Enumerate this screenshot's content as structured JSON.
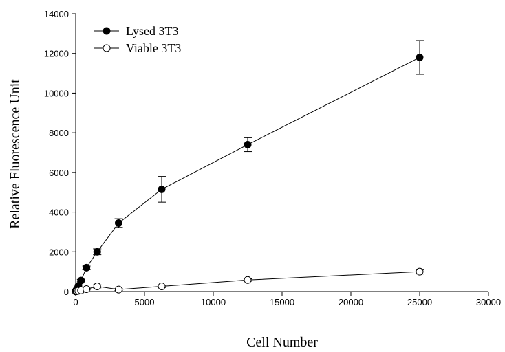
{
  "chart_data": {
    "type": "scatter",
    "title": "",
    "xlabel": "Cell Number",
    "ylabel": "Relative Fluorescence Unit",
    "xlim": [
      0,
      30000
    ],
    "ylim": [
      0,
      14000
    ],
    "xticks": [
      0,
      5000,
      10000,
      15000,
      20000,
      25000,
      30000
    ],
    "yticks": [
      0,
      2000,
      4000,
      6000,
      8000,
      10000,
      12000,
      14000
    ],
    "grid": false,
    "legend_position": "top-left",
    "series": [
      {
        "name": "Lysed 3T3",
        "marker": "filled-circle",
        "color": "#000000",
        "x": [
          0,
          49,
          98,
          195,
          390,
          781,
          1562,
          3125,
          6250,
          12500,
          25000
        ],
        "y": [
          20,
          60,
          130,
          280,
          550,
          1200,
          2000,
          3450,
          5150,
          7400,
          11800
        ],
        "yerr": [
          10,
          20,
          30,
          50,
          60,
          80,
          150,
          220,
          650,
          350,
          850
        ]
      },
      {
        "name": "Viable 3T3",
        "marker": "open-circle",
        "color": "#000000",
        "x": [
          0,
          49,
          98,
          195,
          390,
          781,
          1562,
          3125,
          6250,
          12500,
          25000
        ],
        "y": [
          10,
          20,
          30,
          40,
          60,
          120,
          260,
          100,
          260,
          580,
          1000
        ],
        "yerr": [
          5,
          5,
          10,
          10,
          20,
          40,
          80,
          50,
          60,
          60,
          120
        ]
      }
    ]
  }
}
